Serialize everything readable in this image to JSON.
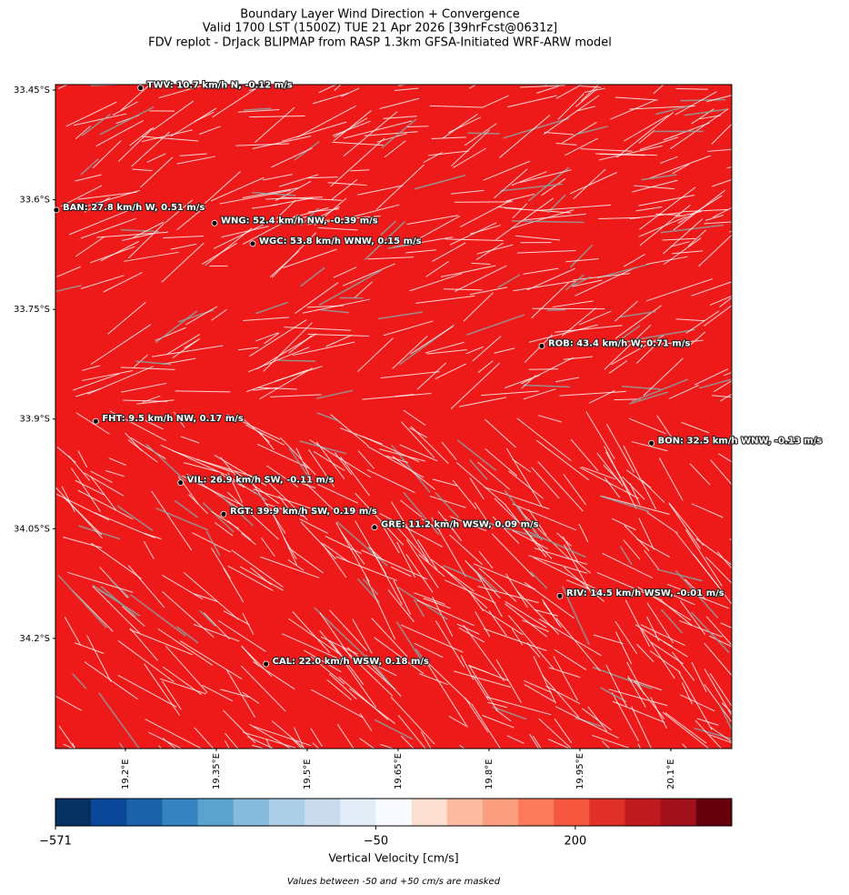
{
  "chart_data": {
    "type": "map",
    "title": [
      "Boundary Layer Wind Direction + Convergence",
      "Valid 1700 LST (1500Z) TUE 21 Apr 2026 [39hrFcst@0631z]",
      "FDV replot - DrJack BLIPMAP from RASP 1.3km GFSA-Initiated WRF-ARW model"
    ],
    "xlim": [
      19.0845,
      20.2005
    ],
    "ylim": [
      -34.3507,
      -33.4425
    ],
    "xticks": [
      {
        "value": 19.2,
        "label": "19.2°E"
      },
      {
        "value": 19.35,
        "label": "19.35°E"
      },
      {
        "value": 19.5,
        "label": "19.5°E"
      },
      {
        "value": 19.65,
        "label": "19.65°E"
      },
      {
        "value": 19.8,
        "label": "19.8°E"
      },
      {
        "value": 19.95,
        "label": "19.95°E"
      },
      {
        "value": 20.1,
        "label": "20.1°E"
      }
    ],
    "yticks": [
      {
        "value": -33.45,
        "label": "33.45°S"
      },
      {
        "value": -33.6,
        "label": "33.6°S"
      },
      {
        "value": -33.75,
        "label": "33.75°S"
      },
      {
        "value": -33.9,
        "label": "33.9°S"
      },
      {
        "value": -34.05,
        "label": "34.05°S"
      },
      {
        "value": -34.2,
        "label": "34.2°S"
      }
    ],
    "stations": [
      {
        "label": "TWV: 10.7 km/h N, -0.12 m/s",
        "lon": 19.225,
        "lat": -33.447
      },
      {
        "label": "BAN: 27.8 km/h W, 0.51 m/s",
        "lon": 19.086,
        "lat": -33.614
      },
      {
        "label": "WNG: 52.4 km/h NW, -0.39 m/s",
        "lon": 19.347,
        "lat": -33.632
      },
      {
        "label": "WGC: 53.8 km/h WNW, 0.15 m/s",
        "lon": 19.41,
        "lat": -33.66
      },
      {
        "label": "ROB: 43.4 km/h W, 0.71 m/s",
        "lon": 19.887,
        "lat": -33.8
      },
      {
        "label": "FHT: 9.5 km/h NW, 0.17 m/s",
        "lon": 19.151,
        "lat": -33.903
      },
      {
        "label": "BON: 32.5 km/h WNW, -0.13 m/s",
        "lon": 20.068,
        "lat": -33.933
      },
      {
        "label": "VIL: 26.9 km/h SW, -0.11 m/s",
        "lon": 19.291,
        "lat": -33.987
      },
      {
        "label": "RGT: 39.9 km/h SW, 0.19 m/s",
        "lon": 19.362,
        "lat": -34.03
      },
      {
        "label": "GRE: 11.2 km/h WSW, 0.09 m/s",
        "lon": 19.611,
        "lat": -34.048
      },
      {
        "label": "RIV: 14.5 km/h WSW, -0.01 m/s",
        "lon": 19.917,
        "lat": -34.142
      },
      {
        "label": "CAL: 22.0 km/h WSW, 0.18 m/s",
        "lon": 19.432,
        "lat": -34.235
      }
    ],
    "colorbar": {
      "label": "Vertical Velocity [cm/s]",
      "levels": [
        -571,
        -513,
        -455,
        -397,
        -339,
        -281,
        -223,
        -166,
        -108,
        -50,
        50,
        82.6,
        115,
        148,
        180,
        213,
        246,
        278,
        311,
        343
      ],
      "colors": [
        "#053061",
        "#08479a",
        "#1b62ab",
        "#3583c0",
        "#5ba2cf",
        "#86bbdc",
        "#abcfe6",
        "#cadbed",
        "#e2edf8",
        "#f7fbff",
        "#fee0d2",
        "#fcbba1",
        "#fc9f81",
        "#fb7b5c",
        "#f5573f",
        "#e03027",
        "#bf1a1e",
        "#a11119",
        "#67000d"
      ],
      "ticks": [
        {
          "value": -571,
          "label": "−571"
        },
        {
          "value": -50,
          "label": "−50"
        },
        200
      ]
    },
    "note": "Values between -50 and +50 cm/s are masked"
  }
}
